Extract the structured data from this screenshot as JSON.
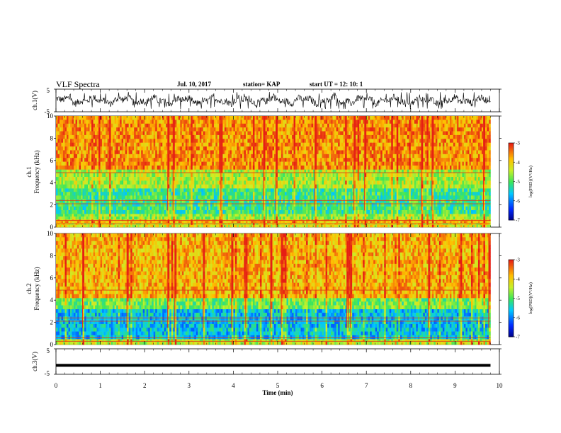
{
  "header": {
    "title": "VLF Spectra",
    "date": "Jul. 10, 2017",
    "station": "station= KAP",
    "start": "start UT =  12: 10: 1"
  },
  "chart_data": [
    {
      "type": "line",
      "panel": "ch1-waveform",
      "ylabel": "ch.1(V)",
      "ylim": [
        -5,
        5
      ],
      "yticks": [
        "5",
        "-5"
      ],
      "xlim": [
        0,
        10
      ],
      "description_values": "noisy waveform oscillating roughly between -3 and 3 V, data spanning 0 to ~9.8 min"
    },
    {
      "type": "heatmap",
      "panel": "ch1-spectrogram",
      "ylabel": "ch.1\nFrequency (kHz)",
      "ylim": [
        0,
        10
      ],
      "yticks": [
        "0",
        "2",
        "4",
        "6",
        "8",
        "10"
      ],
      "xlim": [
        0,
        9.8
      ],
      "bands": [
        {
          "fmin": 0.0,
          "fmax": 0.4,
          "level": -4.2
        },
        {
          "fmin": 0.4,
          "fmax": 0.7,
          "level": -3.8
        },
        {
          "fmin": 0.7,
          "fmax": 1.2,
          "level": -4.6
        },
        {
          "fmin": 1.2,
          "fmax": 3.5,
          "level": -5.1
        },
        {
          "fmin": 3.5,
          "fmax": 5.2,
          "level": -4.5
        },
        {
          "fmin": 5.2,
          "fmax": 10.0,
          "level": -3.6
        }
      ],
      "colorbar": {
        "label": "log(PSD)(V²/Hz)",
        "ticks": [
          "-3",
          "-4",
          "-5",
          "-6",
          "-7"
        ],
        "range": [
          -7,
          -3
        ]
      }
    },
    {
      "type": "heatmap",
      "panel": "ch2-spectrogram",
      "ylabel": "ch.2\nFrequency (kHz)",
      "ylim": [
        0,
        10
      ],
      "yticks": [
        "0",
        "2",
        "4",
        "6",
        "8",
        "10"
      ],
      "xlim": [
        0,
        9.8
      ],
      "bands": [
        {
          "fmin": 0.0,
          "fmax": 0.5,
          "level": -4.4
        },
        {
          "fmin": 0.5,
          "fmax": 3.2,
          "level": -5.6
        },
        {
          "fmin": 3.2,
          "fmax": 4.2,
          "level": -4.8
        },
        {
          "fmin": 4.2,
          "fmax": 10.0,
          "level": -3.8
        }
      ],
      "colorbar": {
        "label": "log(PSD)(V²/Hz)",
        "ticks": [
          "-3",
          "-4",
          "-5",
          "-6",
          "-7"
        ],
        "range": [
          -7,
          -3
        ]
      }
    },
    {
      "type": "line",
      "panel": "ch3-waveform",
      "ylabel": "ch.3(V)",
      "ylim": [
        -5,
        5
      ],
      "yticks": [
        "5",
        "-5"
      ],
      "xlim": [
        0,
        10
      ],
      "xlabel": "Time (min)",
      "xticks": [
        "0",
        "1",
        "2",
        "3",
        "4",
        "5",
        "6",
        "7",
        "8",
        "9",
        "10"
      ],
      "values_constant": -1.5
    }
  ]
}
